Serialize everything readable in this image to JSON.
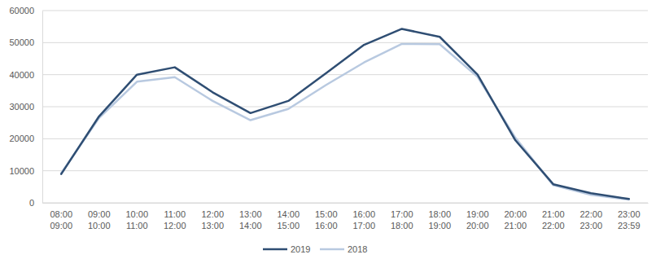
{
  "chart_data": {
    "type": "line",
    "categories": [
      "08:00\n09:00",
      "09:00\n10:00",
      "10:00\n11:00",
      "11:00\n12:00",
      "12:00\n13:00",
      "13:00\n14:00",
      "14:00\n15:00",
      "15:00\n16:00",
      "16:00\n17:00",
      "17:00\n18:00",
      "18:00\n19:00",
      "19:00\n20:00",
      "20:00\n21:00",
      "21:00\n22:00",
      "22:00\n23:00",
      "23:00\n23:59"
    ],
    "series": [
      {
        "name": "2019",
        "color": "#2f4e73",
        "values": [
          9000,
          27000,
          40000,
          42300,
          34500,
          28000,
          31800,
          40500,
          49300,
          54300,
          51800,
          40000,
          19500,
          5800,
          3000,
          1200
        ]
      },
      {
        "name": "2018",
        "color": "#b8c9e0",
        "values": [
          9300,
          26500,
          37800,
          39200,
          31800,
          25800,
          29300,
          36800,
          43800,
          49600,
          49500,
          39300,
          20300,
          5500,
          2500,
          1000
        ]
      }
    ],
    "ylim": [
      0,
      60000
    ],
    "yticks": [
      0,
      10000,
      20000,
      30000,
      40000,
      50000,
      60000
    ],
    "grid": true,
    "legend": "bottom"
  }
}
